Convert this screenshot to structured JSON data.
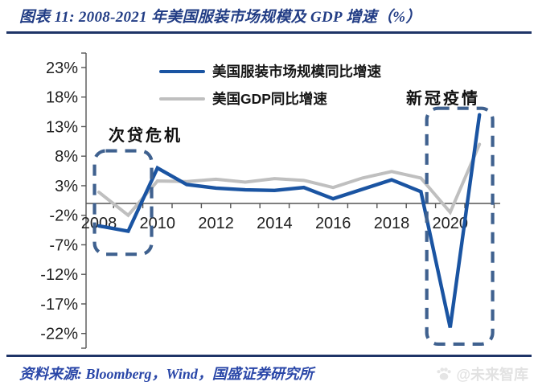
{
  "header": {
    "title": "图表 11:  2008-2021 年美国服装市场规模及 GDP 增速（%）"
  },
  "chart_data": {
    "type": "line",
    "title": "2008-2021 年美国服装市场规模及 GDP 增速（%）",
    "x": [
      2008,
      2009,
      2010,
      2011,
      2012,
      2013,
      2014,
      2015,
      2016,
      2017,
      2018,
      2019,
      2020,
      2021
    ],
    "x_tick_labels": [
      "2008",
      "2010",
      "2012",
      "2014",
      "2016",
      "2018",
      "2020"
    ],
    "y_ticks": [
      "23%",
      "18%",
      "13%",
      "8%",
      "3%",
      "-2%",
      "-7%",
      "-12%",
      "-17%",
      "-22%"
    ],
    "ylim": [
      -24.5,
      25.5
    ],
    "grid": false,
    "legend_position": "top-center",
    "series": [
      {
        "name": "美国服装市场规模同比增速",
        "color": "#1A54A2",
        "values": [
          -3.8,
          -4.7,
          6.0,
          3.2,
          2.6,
          2.3,
          2.2,
          2.7,
          0.8,
          2.4,
          4.0,
          2.0,
          -21.0,
          15.0
        ]
      },
      {
        "name": "美国GDP同比增速",
        "color": "#BFBFBF",
        "values": [
          1.9,
          -2.0,
          3.8,
          3.7,
          4.1,
          3.6,
          4.2,
          3.9,
          2.7,
          4.3,
          5.4,
          4.3,
          -1.5,
          10.0
        ]
      }
    ],
    "annotations": [
      {
        "label": "次贷危机",
        "x1": 2007.85,
        "x2": 2009.8,
        "y_top": 8.9,
        "y_bottom": -8.6,
        "box_color": "#3F618F"
      },
      {
        "label": "新冠疫情",
        "x1": 2019.2,
        "x2": 2021.45,
        "y_top": 16.1,
        "y_bottom": -23.8,
        "box_color": "#3F618F"
      }
    ]
  },
  "source": {
    "text": "资料来源: Bloomberg，Wind，国盛证券研究所"
  },
  "watermark": {
    "icon": "paw",
    "text": "@未来智库"
  }
}
